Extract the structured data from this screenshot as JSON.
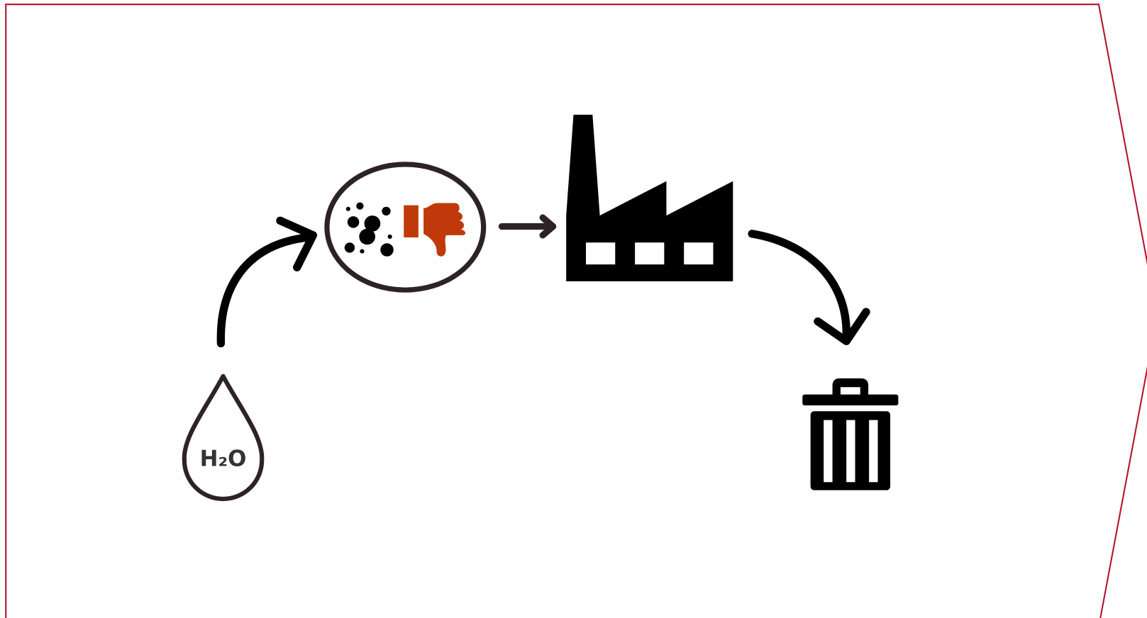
{
  "nodes": [
    {
      "label": "H₂O"
    }
  ]
}
